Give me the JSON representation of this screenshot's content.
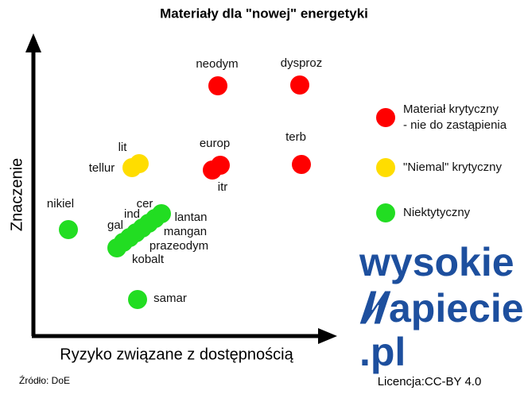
{
  "title": "Materiały dla \"nowej\" energetyki",
  "y_axis_label": "Znaczenie",
  "x_axis_label": "Ryzyko związane z dostępnością",
  "points": [
    {
      "label": "neodym",
      "color": "#ff0000"
    },
    {
      "label": "dysproz",
      "color": "#ff0000"
    },
    {
      "label": "europ",
      "color": "#ff0000"
    },
    {
      "label": "itr",
      "color": "#ff0000"
    },
    {
      "label": "terb",
      "color": "#ff0000"
    },
    {
      "label": "lit",
      "color": "#ffdd00"
    },
    {
      "label": "tellur",
      "color": "#ffdd00"
    },
    {
      "label": "nikiel",
      "color": "#22dd22"
    },
    {
      "label": "cer",
      "color": "#22dd22"
    },
    {
      "label": "ind",
      "color": "#22dd22"
    },
    {
      "label": "gal",
      "color": "#22dd22"
    },
    {
      "label": "lantan",
      "color": "#22dd22"
    },
    {
      "label": "mangan",
      "color": "#22dd22"
    },
    {
      "label": "prazeodym",
      "color": "#22dd22"
    },
    {
      "label": "kobalt",
      "color": "#22dd22"
    },
    {
      "label": "samar",
      "color": "#22dd22"
    }
  ],
  "legend": [
    {
      "lines": [
        "Materiał krytyczny",
        "- nie do zastąpienia"
      ],
      "color": "#ff0000"
    },
    {
      "lines": [
        "\"Niemal\" krytyczny"
      ],
      "color": "#ffdd00"
    },
    {
      "lines": [
        "Niektytyczny"
      ],
      "color": "#22dd22"
    }
  ],
  "logo": [
    "wysokie",
    "apiecie",
    ".pl"
  ],
  "source": "Źródło: DoE",
  "license": "Licencja:CC-BY 4.0"
}
